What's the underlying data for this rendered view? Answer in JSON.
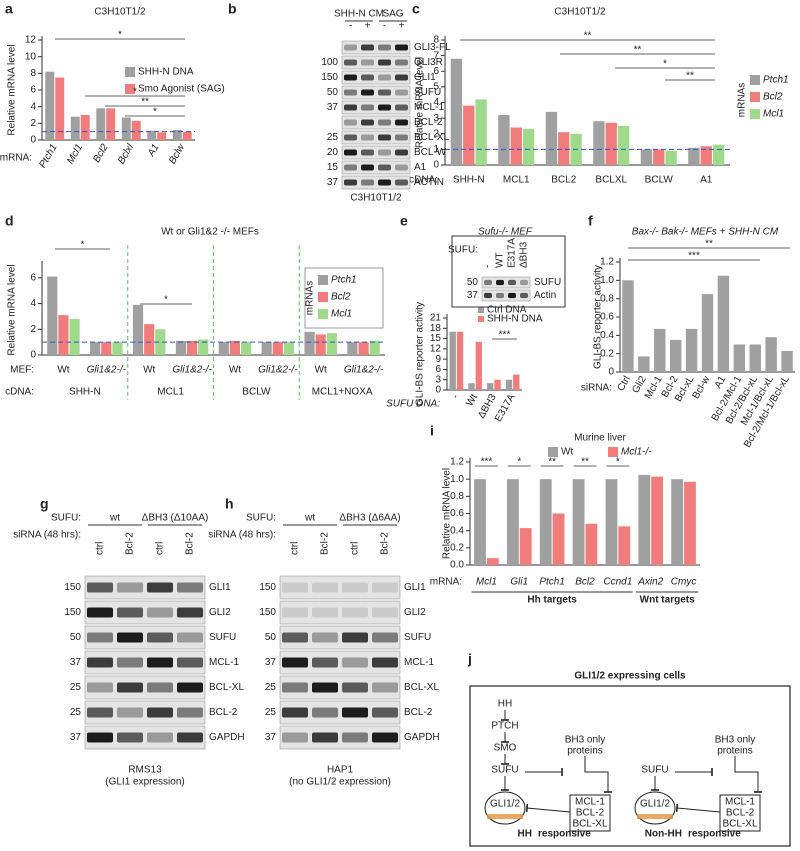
{
  "panel_labels": [
    "a",
    "b",
    "c",
    "d",
    "e",
    "f",
    "g",
    "h",
    "i",
    "j"
  ],
  "chart_data": [
    {
      "type": "bar",
      "title": "C3H10T1/2",
      "y_label": "Relative mRNA level",
      "x_label": "mRNA:",
      "categories": [
        "Ptch1",
        "Mcl1",
        "Bcl2",
        "Bclxl",
        "A1",
        "Bclw"
      ],
      "series": [
        {
          "name": "SHH-N DNA",
          "color": "#a0a0a0",
          "values": [
            8.2,
            2.8,
            3.8,
            2.7,
            1.1,
            1.2
          ]
        },
        {
          "name": "Smo Agonist (SAG)",
          "color": "#f07c7c",
          "values": [
            7.5,
            3.0,
            3.8,
            2.3,
            0.9,
            1.0
          ]
        }
      ],
      "ylim": [
        0,
        12
      ],
      "yticks": [
        0,
        2,
        4,
        6,
        8,
        10,
        12
      ],
      "reference_line": 1,
      "annotations": [
        "*",
        "*",
        "**",
        "*"
      ]
    },
    {
      "type": "bar",
      "title": "C3H10T1/2",
      "y_label": "Relative mRNA level",
      "x_label": "cDNA:",
      "categories": [
        "SHH-N",
        "MCL1",
        "BCL2",
        "BCLXL",
        "BCLW",
        "A1"
      ],
      "series": [
        {
          "name": "Ptch1",
          "color": "#a0a0a0",
          "values": [
            6.8,
            3.2,
            3.4,
            2.8,
            1.0,
            1.1
          ]
        },
        {
          "name": "Bcl2",
          "color": "#f07c7c",
          "values": [
            3.8,
            2.4,
            2.1,
            2.7,
            1.0,
            1.2
          ]
        },
        {
          "name": "Mcl1",
          "color": "#9fd98a",
          "values": [
            4.2,
            2.3,
            2.0,
            2.5,
            0.9,
            1.3
          ]
        }
      ],
      "legend_title": "mRNAs",
      "ylim": [
        0,
        8
      ],
      "yticks": [
        0,
        1,
        2,
        3,
        4,
        5,
        6,
        7,
        8
      ],
      "reference_line": 1,
      "annotations": [
        "**",
        "**",
        "*",
        "**"
      ]
    },
    {
      "type": "bar",
      "title": "Wt or Gli1&2 -/- MEFs",
      "y_label": "Relative mRNA level",
      "row_labels": [
        "MEF:",
        "cDNA:"
      ],
      "categories": [
        "Wt",
        "Gli1&2-/-",
        "Wt",
        "Gli1&2-/-",
        "Wt",
        "Gli1&2-/-",
        "Wt",
        "Gli1&2-/-"
      ],
      "groups": [
        "SHH-N",
        "MCL1",
        "BCLW",
        "MCL1+NOXA"
      ],
      "series": [
        {
          "name": "Ptch1",
          "color": "#a0a0a0",
          "values": [
            6.1,
            1.0,
            3.9,
            1.1,
            1.0,
            1.0,
            1.8,
            1.0
          ]
        },
        {
          "name": "Bcl2",
          "color": "#f07c7c",
          "values": [
            3.1,
            1.0,
            2.4,
            1.1,
            1.1,
            1.0,
            1.6,
            1.0
          ]
        },
        {
          "name": "Mcl1",
          "color": "#9fd98a",
          "values": [
            2.8,
            1.0,
            2.0,
            1.2,
            1.0,
            1.0,
            1.7,
            1.1
          ]
        }
      ],
      "legend_title": "mRNAs",
      "ylim": [
        0,
        7
      ],
      "yticks": [
        0,
        2,
        4,
        6
      ],
      "reference_line": 1,
      "annotations": [
        "*",
        "*"
      ]
    },
    {
      "type": "bar",
      "title": "Sufu-/- MEF",
      "y_label": "GLI-BS reporter activity",
      "x_label": "SUFU DNA:",
      "categories": [
        "-",
        "Wt",
        "ΔBH3",
        "E317A"
      ],
      "series": [
        {
          "name": "Ctrl DNA",
          "color": "#a0a0a0",
          "values": [
            17,
            2,
            2,
            3
          ]
        },
        {
          "name": "SHH-N DNA",
          "color": "#f07c7c",
          "values": [
            17,
            14,
            3,
            4.5
          ]
        }
      ],
      "ylim": [
        0,
        21
      ],
      "yticks": [
        0,
        3,
        6,
        9,
        12,
        15,
        18,
        21
      ],
      "annotations": [
        "***"
      ]
    },
    {
      "type": "bar",
      "title": "Bax-/- Bak-/- MEFs + SHH-N CM",
      "y_label": "GLI-BS reporter activity",
      "x_label": "siRNA:",
      "categories": [
        "Ctrl",
        "Gli2",
        "Mcl-1",
        "Bcl-2",
        "Bcl-xL",
        "Bcl-w",
        "A1",
        "Bcl-2/Mcl-1",
        "Bcl-2/Bcl-xL",
        "Mcl-1/Bcl-xL",
        "Bcl-2/Mcl-1/Bcl-xL"
      ],
      "series": [
        {
          "name": "siRNA",
          "color": "#a0a0a0",
          "values": [
            1.0,
            0.17,
            0.47,
            0.35,
            0.47,
            0.85,
            1.05,
            0.3,
            0.3,
            0.38,
            0.23
          ]
        }
      ],
      "ylim": [
        0,
        1.2
      ],
      "yticks": [
        0,
        0.2,
        0.4,
        0.6,
        0.8,
        {
          "value": 1,
          "label": "1.0"
        },
        1.2
      ],
      "annotations": [
        "**",
        "***"
      ]
    },
    {
      "type": "bar",
      "title": "Murine liver",
      "y_label": "Relative mRNA level",
      "x_label": "mRNA:",
      "categories": [
        "Mcl1",
        "Gli1",
        "Ptch1",
        "Bcl2",
        "Ccnd1",
        "Axin2",
        "Cmyc"
      ],
      "groups": [
        "Hh targets",
        "Wnt targets"
      ],
      "series": [
        {
          "name": "Wt",
          "color": "#a0a0a0",
          "values": [
            1.0,
            1.0,
            1.0,
            1.0,
            1.0,
            1.05,
            1.0
          ]
        },
        {
          "name": "Mcl1-/-",
          "color": "#f07c7c",
          "values": [
            0.08,
            0.43,
            0.6,
            0.48,
            0.45,
            1.03,
            0.97
          ]
        }
      ],
      "ylim": [
        0,
        1.2
      ],
      "yticks": [
        {
          "value": 0,
          "label": "0.0"
        },
        0.2,
        0.4,
        0.6,
        0.8,
        {
          "value": 1,
          "label": "1.0"
        },
        1.2
      ],
      "annotations": [
        "***",
        "*",
        "**",
        "**",
        "*"
      ]
    }
  ],
  "blots": [
    {
      "conditions": [
        "SHH-N CM",
        "SAG"
      ],
      "lanes": [
        "-",
        "+",
        "-",
        "+"
      ],
      "bands": [
        "GLI3-FL",
        "GLI3R",
        "GLI1",
        "SUFU",
        "MCL-1",
        "BCL-2",
        "BCL-XL",
        "BCL-W",
        "A1",
        "ACTIN"
      ],
      "markers": [
        null,
        100,
        150,
        50,
        37,
        null,
        25,
        20,
        15,
        37
      ],
      "caption": [
        "C3H10T1/2"
      ]
    },
    {
      "row_labels": [
        "SUFU:"
      ],
      "lanes": [
        "-",
        "WT",
        "E317A",
        "ΔBH3"
      ],
      "bands": [
        "SUFU",
        "Actin"
      ],
      "markers": [
        50,
        37
      ]
    },
    {
      "row_labels": [
        "SUFU:",
        "siRNA (48 hrs):"
      ],
      "conditions": [
        "wt",
        "ΔBH3 (Δ10AA)"
      ],
      "lanes": [
        "ctrl",
        "Bcl-2",
        "ctrl",
        "Bcl-2"
      ],
      "bands": [
        "GLI1",
        "GLI2",
        "SUFU",
        "MCL-1",
        "BCL-XL",
        "BCL-2",
        "GAPDH"
      ],
      "markers": [
        150,
        150,
        50,
        37,
        25,
        25,
        37
      ],
      "caption": [
        "RMS13",
        "(GLI1 expression)"
      ]
    },
    {
      "row_labels": [
        "SUFU:",
        "siRNA (48 hrs):"
      ],
      "conditions": [
        "wt",
        "ΔBH3 (Δ6AA)"
      ],
      "lanes": [
        "ctrl",
        "Bcl-2",
        "ctrl",
        "Bcl-2"
      ],
      "bands": [
        "GLI1",
        "GLI2",
        "SUFU",
        "MCL-1",
        "BCL-XL",
        "BCL-2",
        "GAPDH"
      ],
      "markers": [
        150,
        150,
        50,
        37,
        25,
        25,
        37
      ],
      "caption": [
        "HAP1",
        "(no GLI1/2 expression)"
      ]
    }
  ],
  "diagram": {
    "title": "GLI1/2 expressing cells",
    "left": {
      "nodes": [
        "HH",
        "PTCH",
        "SMO",
        "SUFU"
      ],
      "bh3": [
        "BH3 only",
        "proteins"
      ],
      "targets": [
        "MCL-1",
        "BCL-2",
        "BCL-XL"
      ],
      "gli": "GLI1/2",
      "caption": [
        "HH",
        "responsive"
      ]
    },
    "right": {
      "nodes": [
        "SUFU"
      ],
      "bh3": [
        "BH3 only",
        "proteins"
      ],
      "targets": [
        "MCL-1",
        "BCL-2",
        "BCL-XL"
      ],
      "gli": "GLI1/2",
      "caption": [
        "Non-HH",
        "responsive"
      ]
    }
  }
}
